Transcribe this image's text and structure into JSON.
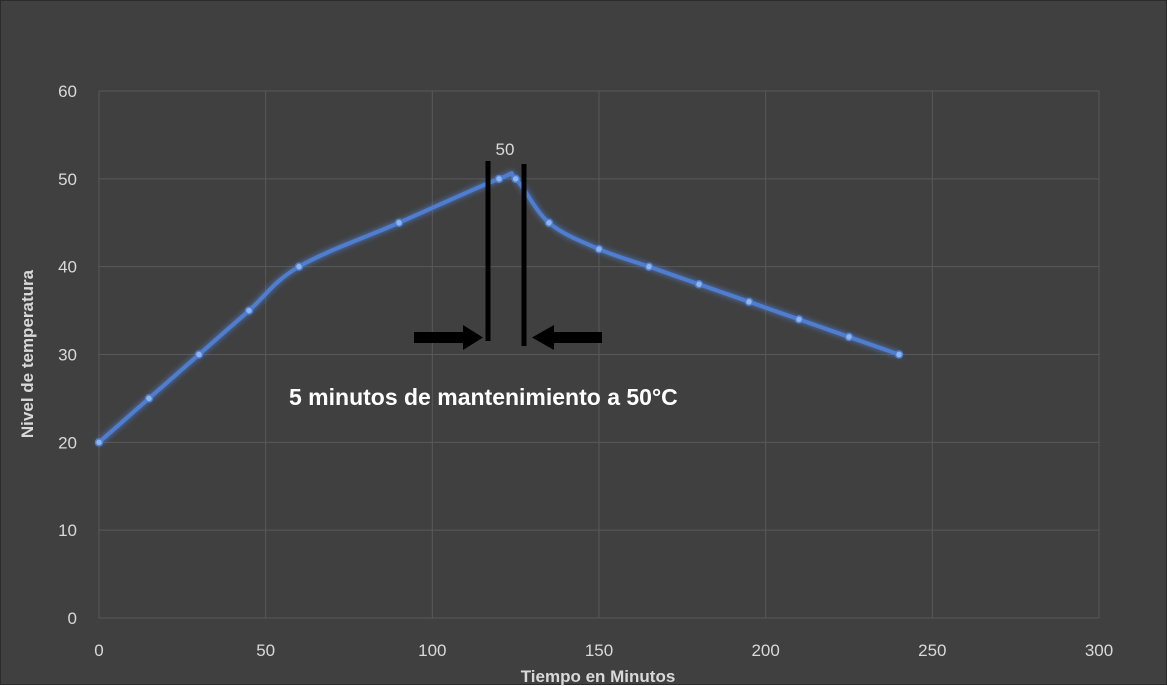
{
  "chart_data": {
    "type": "line",
    "title": "",
    "xlabel": "Tiempo en Minutos",
    "ylabel": "Nivel de temperatura",
    "xlim": [
      0,
      300
    ],
    "ylim": [
      0,
      60
    ],
    "xticks": [
      0,
      50,
      100,
      150,
      200,
      250,
      300
    ],
    "yticks": [
      0,
      10,
      20,
      30,
      40,
      50,
      60
    ],
    "grid": true,
    "legend": "none",
    "line_color": "#4f7ed0",
    "background": "#404040",
    "series": [
      {
        "x": [
          0,
          15,
          30,
          45,
          60,
          90,
          120,
          125,
          135,
          150,
          165,
          180,
          195,
          210,
          225,
          240
        ],
        "y": [
          20,
          25,
          30,
          35,
          40,
          45,
          50,
          50,
          45,
          42,
          40,
          38,
          36,
          34,
          32,
          30
        ]
      }
    ],
    "data_labels": [
      {
        "x": 120,
        "y": 50,
        "text": "50"
      }
    ],
    "annotations": [
      {
        "text": "5 minutos de mantenimiento a 50°C"
      }
    ]
  }
}
